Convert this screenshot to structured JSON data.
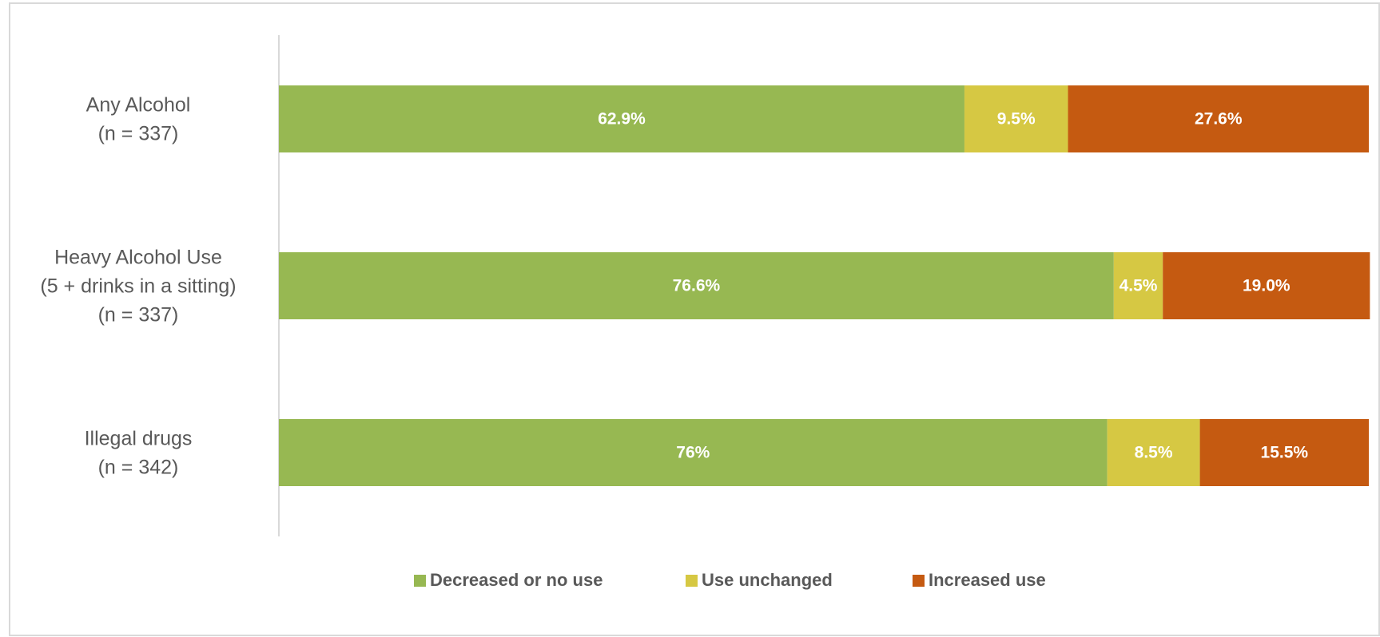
{
  "chart_data": {
    "type": "stacked_barh",
    "categories": [
      [
        "Any Alcohol",
        "(n = 337)"
      ],
      [
        "Heavy Alcohol Use",
        "(5 + drinks in a sitting)",
        "(n = 337)"
      ],
      [
        "Illegal drugs",
        "(n = 342)"
      ]
    ],
    "series": [
      {
        "name": "Decreased or no use",
        "color": "#97b852",
        "values": [
          62.9,
          76.6,
          76
        ],
        "value_labels": [
          "62.9%",
          "76.6%",
          "76%"
        ]
      },
      {
        "name": "Use unchanged",
        "color": "#d6c843",
        "values": [
          9.5,
          4.5,
          8.5
        ],
        "value_labels": [
          "9.5%",
          "4.5%",
          "8.5%"
        ]
      },
      {
        "name": "Increased use",
        "color": "#c55a11",
        "values": [
          27.6,
          19.0,
          15.5
        ],
        "value_labels": [
          "27.6%",
          "19.0%",
          "15.5%"
        ]
      }
    ],
    "xlim": [
      0,
      100
    ],
    "legend": "bottom"
  }
}
